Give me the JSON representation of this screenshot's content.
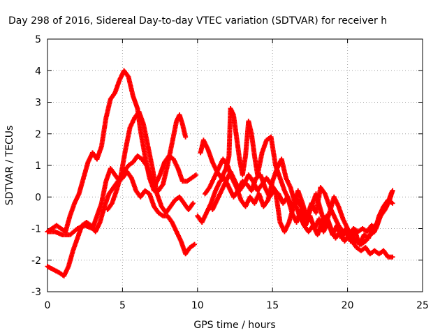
{
  "chart_data": {
    "type": "scatter",
    "title": "Day 298 of 2016, Sidereal Day-to-day VTEC variation (SDTVAR) for receiver h",
    "xlabel": "GPS time / hours",
    "ylabel": "SDTVAR / TECUs",
    "xlim": [
      0,
      25
    ],
    "ylim": [
      -3,
      5
    ],
    "xticks": [
      "0",
      "5",
      "10",
      "15",
      "20",
      "25"
    ],
    "yticks": [
      "-3",
      "-2",
      "-1",
      "0",
      "1",
      "2",
      "3",
      "4",
      "5"
    ],
    "grid": true,
    "marker": "plus",
    "color": "#ff0000",
    "series": [
      {
        "points": [
          [
            0,
            -1.1
          ],
          [
            0.3,
            -1.0
          ],
          [
            0.6,
            -0.9
          ],
          [
            0.9,
            -1.0
          ],
          [
            1.2,
            -1.1
          ],
          [
            1.5,
            -0.6
          ],
          [
            1.8,
            -0.2
          ],
          [
            2.1,
            0.1
          ],
          [
            2.4,
            0.6
          ],
          [
            2.7,
            1.1
          ],
          [
            3.0,
            1.4
          ],
          [
            3.3,
            1.2
          ],
          [
            3.6,
            1.6
          ],
          [
            3.9,
            2.5
          ],
          [
            4.2,
            3.1
          ],
          [
            4.5,
            3.3
          ],
          [
            4.8,
            3.7
          ],
          [
            5.1,
            4.0
          ],
          [
            5.4,
            3.8
          ],
          [
            5.7,
            3.2
          ],
          [
            6.0,
            2.8
          ],
          [
            6.2,
            2.1
          ],
          [
            6.5,
            1.3
          ],
          [
            6.8,
            0.6
          ],
          [
            7.1,
            0.2
          ],
          [
            7.4,
            0.2
          ],
          [
            7.7,
            0.4
          ],
          [
            8.0,
            1.0
          ],
          [
            8.3,
            1.7
          ],
          [
            8.6,
            2.4
          ],
          [
            8.8,
            2.6
          ],
          [
            9.0,
            2.3
          ],
          [
            9.2,
            1.9
          ]
        ]
      },
      {
        "points": [
          [
            0,
            -1.1
          ],
          [
            0.5,
            -1.1
          ],
          [
            1.0,
            -1.2
          ],
          [
            1.5,
            -1.2
          ],
          [
            2.0,
            -1.0
          ],
          [
            2.5,
            -0.9
          ],
          [
            3.0,
            -1.0
          ],
          [
            3.3,
            -0.6
          ],
          [
            3.6,
            -0.2
          ],
          [
            3.9,
            0.5
          ],
          [
            4.2,
            0.9
          ],
          [
            4.5,
            0.7
          ],
          [
            4.8,
            0.5
          ],
          [
            5.1,
            0.8
          ],
          [
            5.4,
            1.0
          ],
          [
            5.7,
            1.1
          ],
          [
            6.0,
            1.3
          ],
          [
            6.3,
            1.2
          ],
          [
            6.6,
            1.0
          ],
          [
            6.9,
            0.6
          ],
          [
            7.2,
            0.4
          ],
          [
            7.5,
            0.7
          ],
          [
            7.8,
            1.1
          ],
          [
            8.1,
            1.3
          ],
          [
            8.4,
            1.2
          ],
          [
            8.7,
            0.9
          ],
          [
            9.0,
            0.5
          ],
          [
            9.3,
            0.5
          ],
          [
            9.6,
            0.6
          ],
          [
            9.9,
            0.7
          ]
        ]
      },
      {
        "points": [
          [
            0,
            -2.2
          ],
          [
            0.4,
            -2.3
          ],
          [
            0.8,
            -2.4
          ],
          [
            1.1,
            -2.5
          ],
          [
            1.4,
            -2.2
          ],
          [
            1.7,
            -1.7
          ],
          [
            2.0,
            -1.3
          ],
          [
            2.3,
            -0.9
          ],
          [
            2.6,
            -0.8
          ],
          [
            2.9,
            -0.9
          ],
          [
            3.2,
            -1.1
          ],
          [
            3.5,
            -0.8
          ],
          [
            3.8,
            -0.3
          ],
          [
            4.1,
            0.1
          ],
          [
            4.4,
            0.3
          ],
          [
            4.7,
            0.5
          ],
          [
            5.0,
            0.6
          ],
          [
            5.3,
            0.8
          ],
          [
            5.6,
            0.6
          ],
          [
            5.9,
            0.2
          ],
          [
            6.2,
            0.0
          ],
          [
            6.5,
            0.2
          ],
          [
            6.8,
            0.1
          ],
          [
            7.1,
            -0.3
          ],
          [
            7.4,
            -0.5
          ],
          [
            7.7,
            -0.6
          ],
          [
            8.0,
            -0.6
          ],
          [
            8.3,
            -0.8
          ],
          [
            8.6,
            -1.1
          ],
          [
            8.9,
            -1.4
          ],
          [
            9.2,
            -1.8
          ],
          [
            9.5,
            -1.6
          ],
          [
            9.8,
            -1.5
          ]
        ]
      },
      {
        "points": [
          [
            4.0,
            -0.4
          ],
          [
            4.3,
            -0.2
          ],
          [
            4.6,
            0.2
          ],
          [
            4.9,
            0.7
          ],
          [
            5.2,
            1.5
          ],
          [
            5.5,
            2.2
          ],
          [
            5.8,
            2.5
          ],
          [
            6.1,
            2.7
          ],
          [
            6.4,
            2.3
          ],
          [
            6.7,
            1.6
          ],
          [
            7.0,
            0.9
          ],
          [
            7.3,
            0.1
          ],
          [
            7.6,
            -0.3
          ],
          [
            7.9,
            -0.5
          ],
          [
            8.2,
            -0.3
          ],
          [
            8.5,
            -0.1
          ],
          [
            8.8,
            0.0
          ],
          [
            9.1,
            -0.2
          ],
          [
            9.4,
            -0.4
          ],
          [
            9.7,
            -0.2
          ]
        ]
      },
      {
        "points": [
          [
            10.0,
            -0.6
          ],
          [
            10.3,
            -0.8
          ],
          [
            10.6,
            -0.5
          ],
          [
            10.9,
            -0.2
          ],
          [
            11.2,
            0.2
          ],
          [
            11.5,
            0.5
          ],
          [
            11.8,
            0.6
          ],
          [
            12.1,
            0.3
          ],
          [
            12.4,
            0.0
          ],
          [
            12.7,
            0.2
          ],
          [
            13.0,
            0.5
          ],
          [
            13.3,
            0.4
          ],
          [
            13.6,
            0.2
          ],
          [
            13.9,
            0.6
          ],
          [
            14.2,
            0.7
          ],
          [
            14.5,
            0.3
          ],
          [
            14.8,
            0.0
          ],
          [
            15.1,
            0.2
          ],
          [
            15.4,
            0.1
          ],
          [
            15.7,
            -0.2
          ],
          [
            16.0,
            0.0
          ],
          [
            16.3,
            -0.5
          ],
          [
            16.6,
            -0.8
          ],
          [
            16.9,
            -0.4
          ],
          [
            17.2,
            -0.9
          ],
          [
            17.5,
            -0.6
          ],
          [
            17.8,
            -1.0
          ],
          [
            18.1,
            -0.7
          ],
          [
            18.4,
            -1.1
          ],
          [
            18.7,
            -0.8
          ],
          [
            19.0,
            -1.2
          ],
          [
            19.3,
            -0.9
          ],
          [
            19.6,
            -1.3
          ],
          [
            19.9,
            -1.0
          ],
          [
            20.2,
            -1.4
          ],
          [
            20.5,
            -1.1
          ],
          [
            20.8,
            -1.5
          ],
          [
            21.1,
            -1.2
          ],
          [
            21.4,
            -1.3
          ],
          [
            21.7,
            -1.0
          ],
          [
            22.0,
            -0.8
          ],
          [
            22.3,
            -0.5
          ],
          [
            22.6,
            -0.3
          ],
          [
            22.9,
            0.1
          ],
          [
            23.0,
            0.2
          ]
        ]
      },
      {
        "points": [
          [
            10.2,
            1.4
          ],
          [
            10.4,
            1.8
          ],
          [
            10.7,
            1.5
          ],
          [
            11.0,
            1.1
          ],
          [
            11.3,
            0.8
          ],
          [
            11.6,
            0.6
          ],
          [
            11.9,
            0.9
          ],
          [
            12.1,
            1.3
          ],
          [
            12.2,
            2.8
          ],
          [
            12.4,
            2.6
          ],
          [
            12.6,
            1.9
          ],
          [
            12.8,
            1.2
          ],
          [
            13.0,
            0.7
          ],
          [
            13.2,
            1.3
          ],
          [
            13.4,
            2.4
          ],
          [
            13.6,
            2.0
          ],
          [
            13.8,
            1.3
          ],
          [
            14.0,
            0.7
          ],
          [
            14.3,
            1.4
          ],
          [
            14.6,
            1.8
          ],
          [
            14.9,
            1.9
          ],
          [
            15.2,
            1.0
          ],
          [
            15.5,
            0.6
          ],
          [
            15.8,
            0.2
          ],
          [
            16.1,
            -0.1
          ],
          [
            16.4,
            -0.3
          ],
          [
            16.7,
            -0.1
          ],
          [
            17.0,
            -0.4
          ],
          [
            17.3,
            -0.6
          ],
          [
            17.6,
            -0.2
          ],
          [
            17.9,
            -0.5
          ],
          [
            18.2,
            0.3
          ],
          [
            18.5,
            0.1
          ],
          [
            18.8,
            -0.3
          ],
          [
            19.1,
            -0.6
          ],
          [
            19.4,
            -0.9
          ],
          [
            19.7,
            -1.1
          ],
          [
            20.0,
            -1.2
          ],
          [
            20.3,
            -1.4
          ],
          [
            20.6,
            -1.6
          ],
          [
            20.9,
            -1.7
          ],
          [
            21.2,
            -1.6
          ],
          [
            21.5,
            -1.8
          ],
          [
            21.8,
            -1.7
          ],
          [
            22.1,
            -1.8
          ],
          [
            22.4,
            -1.7
          ],
          [
            22.7,
            -1.9
          ],
          [
            23.0,
            -1.9
          ]
        ]
      },
      {
        "points": [
          [
            10.5,
            0.1
          ],
          [
            10.8,
            0.3
          ],
          [
            11.1,
            0.6
          ],
          [
            11.4,
            0.9
          ],
          [
            11.7,
            1.2
          ],
          [
            12.0,
            1.0
          ],
          [
            12.3,
            0.6
          ],
          [
            12.6,
            0.3
          ],
          [
            12.9,
            -0.1
          ],
          [
            13.2,
            -0.3
          ],
          [
            13.5,
            0.0
          ],
          [
            13.8,
            -0.2
          ],
          [
            14.1,
            0.1
          ],
          [
            14.4,
            -0.3
          ],
          [
            14.7,
            -0.1
          ],
          [
            15.0,
            0.5
          ],
          [
            15.3,
            0.9
          ],
          [
            15.6,
            1.2
          ],
          [
            15.9,
            0.6
          ],
          [
            16.2,
            0.3
          ],
          [
            16.5,
            -0.2
          ],
          [
            16.8,
            -0.6
          ],
          [
            17.1,
            -0.9
          ],
          [
            17.4,
            -1.1
          ],
          [
            17.7,
            -0.9
          ],
          [
            18.0,
            -1.2
          ],
          [
            18.3,
            -0.8
          ],
          [
            18.6,
            -0.6
          ],
          [
            18.9,
            -1.0
          ],
          [
            19.2,
            -1.3
          ],
          [
            19.5,
            -1.1
          ],
          [
            19.8,
            -1.4
          ],
          [
            20.1,
            -1.2
          ],
          [
            20.4,
            -1.0
          ],
          [
            20.7,
            -1.1
          ],
          [
            21.0,
            -1.0
          ],
          [
            21.3,
            -1.1
          ],
          [
            21.6,
            -0.9
          ],
          [
            21.9,
            -1.0
          ],
          [
            22.2,
            -0.6
          ],
          [
            22.5,
            -0.4
          ],
          [
            22.8,
            -0.1
          ],
          [
            23.0,
            0.2
          ]
        ]
      },
      {
        "points": [
          [
            11.0,
            -0.4
          ],
          [
            11.3,
            -0.1
          ],
          [
            11.6,
            0.2
          ],
          [
            11.9,
            0.5
          ],
          [
            12.2,
            0.8
          ],
          [
            12.5,
            0.5
          ],
          [
            12.8,
            0.2
          ],
          [
            13.1,
            0.4
          ],
          [
            13.4,
            0.7
          ],
          [
            13.7,
            0.5
          ],
          [
            14.0,
            0.2
          ],
          [
            14.3,
            0.4
          ],
          [
            14.6,
            0.6
          ],
          [
            14.9,
            0.4
          ],
          [
            15.2,
            0.2
          ],
          [
            15.5,
            -0.8
          ],
          [
            15.8,
            -1.1
          ],
          [
            16.1,
            -0.8
          ],
          [
            16.4,
            -0.3
          ],
          [
            16.7,
            0.2
          ],
          [
            17.0,
            -0.2
          ],
          [
            17.3,
            -0.7
          ],
          [
            17.6,
            -0.3
          ],
          [
            17.9,
            0.1
          ],
          [
            18.2,
            -0.4
          ],
          [
            18.5,
            -0.9
          ],
          [
            18.8,
            -0.5
          ],
          [
            19.1,
            0.0
          ],
          [
            19.4,
            -0.3
          ],
          [
            19.7,
            -0.7
          ],
          [
            20.0,
            -1.0
          ],
          [
            20.3,
            -1.3
          ],
          [
            20.6,
            -1.4
          ],
          [
            20.9,
            -1.5
          ],
          [
            21.2,
            -1.4
          ],
          [
            21.5,
            -1.2
          ],
          [
            21.8,
            -1.1
          ],
          [
            22.1,
            -0.6
          ],
          [
            22.4,
            -0.3
          ],
          [
            22.7,
            -0.1
          ],
          [
            23.0,
            -0.2
          ]
        ]
      }
    ]
  }
}
